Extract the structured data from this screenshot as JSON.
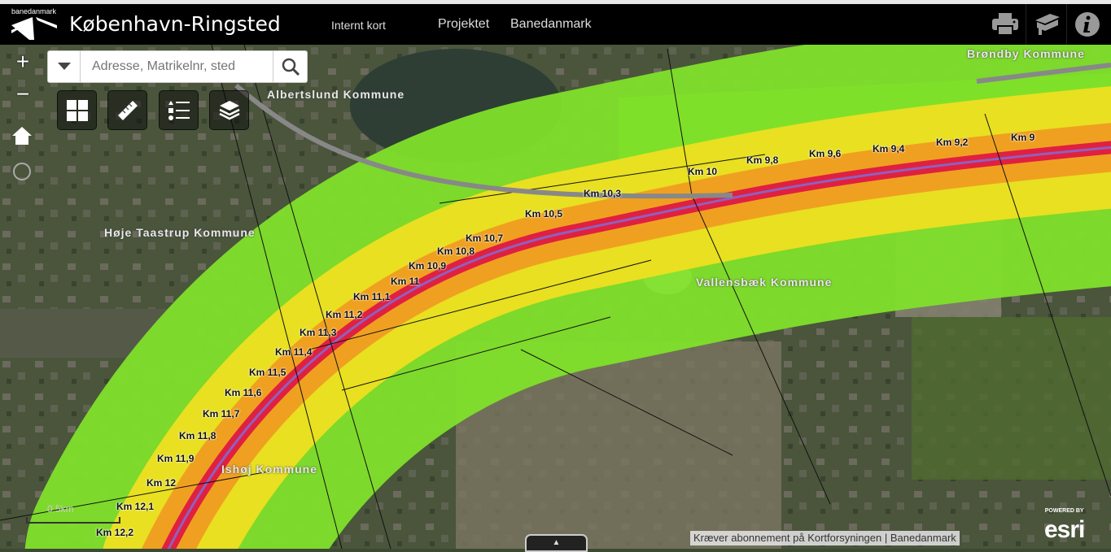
{
  "header": {
    "brand": "banedanmark",
    "title": "København-Ringsted",
    "nav": [
      {
        "label": "Internt kort"
      },
      {
        "label": "Projektet"
      },
      {
        "label": "Banedanmark"
      }
    ],
    "icons": [
      "printer-icon",
      "graduation-cap-icon",
      "info-icon"
    ]
  },
  "search": {
    "placeholder": "Adresse, Matrikelnr, sted"
  },
  "map_controls": {
    "zoom_in": "+",
    "zoom_out": "−"
  },
  "tools": [
    "basemap-gallery-icon",
    "measure-ruler-icon",
    "legend-icon",
    "layers-icon"
  ],
  "map_labels": [
    "Albertslund Kommune",
    "Brøndby Kommune",
    "Høje Taastrup Kommune",
    "Vallensbæk Kommune",
    "Ishøj Kommune"
  ],
  "km_labels": [
    "Km 9",
    "Km 9,2",
    "Km 9,4",
    "Km 9,6",
    "Km 9,8",
    "Km 10",
    "Km 10,3",
    "Km 10,5",
    "Km 10,7",
    "Km 10,8",
    "Km 10,9",
    "Km 11",
    "Km 11,1",
    "Km 11,2",
    "Km 11,3",
    "Km 11,4",
    "Km 11,5",
    "Km 11,6",
    "Km 11,7",
    "Km 11,8",
    "Km 11,9",
    "Km 12",
    "Km 12,1",
    "Km 12,2"
  ],
  "scale": "0.5km",
  "attribution": "Kræver abonnement på Kortforsyningen | Banedanmark",
  "esri": {
    "powered": "POWERED BY",
    "name": "esri"
  },
  "colors": {
    "noise_green": "#7fe02a",
    "noise_yellow": "#e8e020",
    "noise_orange": "#e88a20",
    "noise_red": "#e02040",
    "track": "#9060c0"
  }
}
